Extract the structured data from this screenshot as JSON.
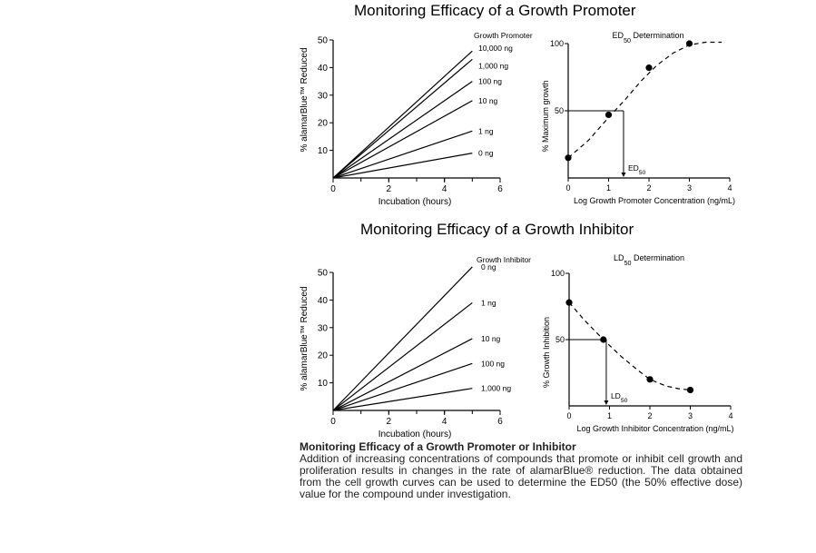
{
  "sections": [
    {
      "title": "Monitoring Efficacy of a Growth Promoter"
    },
    {
      "title": "Monitoring Efficacy of a Growth Inhibitor"
    }
  ],
  "chart_data": [
    {
      "type": "line",
      "xlabel": "Incubation (hours)",
      "ylabel": "% alamarBlue™ Reduced",
      "xlim": [
        0,
        6
      ],
      "ylim": [
        0,
        50
      ],
      "xticks": [
        "0",
        "2",
        "4",
        "6"
      ],
      "yticks": [
        "10",
        "20",
        "30",
        "40",
        "50"
      ],
      "legend_title": "Growth Promoter",
      "series": [
        {
          "name": "10,000 ng",
          "x": [
            0,
            5
          ],
          "y": [
            0,
            46
          ]
        },
        {
          "name": "1,000 ng",
          "x": [
            0,
            5
          ],
          "y": [
            0,
            43
          ]
        },
        {
          "name": "100 ng",
          "x": [
            0,
            5
          ],
          "y": [
            0,
            35
          ]
        },
        {
          "name": "10 ng",
          "x": [
            0,
            5
          ],
          "y": [
            0,
            28
          ]
        },
        {
          "name": "1 ng",
          "x": [
            0,
            5
          ],
          "y": [
            0,
            17
          ]
        },
        {
          "name": "0 ng",
          "x": [
            0,
            5
          ],
          "y": [
            0,
            9
          ]
        }
      ]
    },
    {
      "type": "scatter",
      "title": "ED",
      "title_subscript": "50",
      "title_suffix": " Determination",
      "xlabel": "Log Growth Promoter Concentration  (ng/mL)",
      "ylabel": "% Maximum growth",
      "xlim": [
        0,
        4
      ],
      "ylim": [
        0,
        100
      ],
      "xticks": [
        "0",
        "1",
        "2",
        "3",
        "4"
      ],
      "yticks": [
        "50",
        "100"
      ],
      "points": {
        "x": [
          0,
          1,
          2,
          3
        ],
        "y": [
          15,
          47,
          82,
          100
        ]
      },
      "fit_curve": {
        "style": "dashed",
        "x": [
          0,
          0.5,
          1,
          1.4,
          1.8,
          2.2,
          2.6,
          3,
          3.4,
          3.8
        ],
        "y": [
          15,
          28,
          45,
          58,
          72,
          84,
          93,
          99,
          101,
          101
        ]
      },
      "marker_value": {
        "label": "ED",
        "label_subscript": "50",
        "x": 1.37,
        "y": 50
      }
    },
    {
      "type": "line",
      "xlabel": "Incubation (hours)",
      "ylabel": "% alamarBlue™ Reduced",
      "xlim": [
        0,
        6
      ],
      "ylim": [
        0,
        50
      ],
      "xticks": [
        "0",
        "2",
        "4",
        "6"
      ],
      "yticks": [
        "10",
        "20",
        "30",
        "40",
        "50"
      ],
      "legend_title": "Growth Inhibitor",
      "series": [
        {
          "name": "0 ng",
          "x": [
            0,
            5
          ],
          "y": [
            0,
            52
          ]
        },
        {
          "name": "1 ng",
          "x": [
            0,
            5
          ],
          "y": [
            0,
            39
          ]
        },
        {
          "name": "10 ng",
          "x": [
            0,
            5
          ],
          "y": [
            0,
            26
          ]
        },
        {
          "name": "100 ng",
          "x": [
            0,
            5
          ],
          "y": [
            0,
            17
          ]
        },
        {
          "name": "1,000 ng",
          "x": [
            0,
            5
          ],
          "y": [
            0,
            8
          ]
        }
      ]
    },
    {
      "type": "scatter",
      "title": "LD",
      "title_subscript": "50",
      "title_suffix": " Determination",
      "xlabel": "Log Growth Inhibitor Concentration (ng/mL)",
      "ylabel": "% Growth Inhibition",
      "xlim": [
        0,
        4
      ],
      "ylim": [
        0,
        100
      ],
      "xticks": [
        "0",
        "1",
        "2",
        "3",
        "4"
      ],
      "yticks": [
        "50",
        "100"
      ],
      "points": {
        "x": [
          0,
          0.85,
          2,
          3
        ],
        "y": [
          78,
          50,
          20,
          12
        ]
      },
      "fit_curve": {
        "style": "dashed",
        "x": [
          0,
          0.4,
          0.85,
          1.3,
          1.7,
          2,
          2.4,
          2.7,
          3
        ],
        "y": [
          78,
          64,
          50,
          37,
          27,
          20,
          15,
          13,
          12
        ]
      },
      "marker_value": {
        "label": "LD",
        "label_subscript": "50",
        "x": 0.92,
        "y": 50
      }
    }
  ],
  "caption": {
    "title": "Monitoring Efficacy of a Growth Promoter or Inhibitor",
    "body": "Addition of increasing concentrations of compounds that promote or inhibit cell growth and proliferation results in changes in the rate of alamarBlue® reduction. The data obtained from the cell growth curves can be used to determine the ED50 (the 50% effective dose) value for the compound under investigation."
  }
}
